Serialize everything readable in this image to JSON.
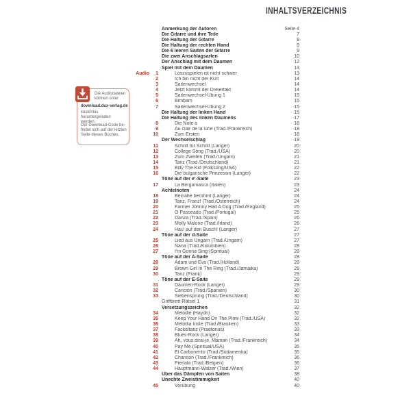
{
  "page": {
    "title": "INHALTSVERZEICHNIS"
  },
  "colors": {
    "accent": "#b73a2b",
    "icon_fill": "#c04a38",
    "box_border": "#d6907f",
    "heading_text": "#2d2d2d",
    "body_text": "#4c4c4c"
  },
  "download_box": {
    "icon": "download-icon",
    "intro_lines": "Die Audiodateien können unter",
    "url": "download.dux-verlag.de",
    "after_url": "kostenlos heruntergeladen werden.",
    "code_note": "Der Download-Code be- findet sich auf der letzten Seite dieses Buches."
  },
  "toc": {
    "rows": [
      {
        "t": "h",
        "label": "Anmerkung der Autoren",
        "page": "Seite 4"
      },
      {
        "t": "h",
        "label": "Die Gitarre und ihre Teile",
        "page": "7"
      },
      {
        "t": "h",
        "label": "Die Haltung der Gitarre",
        "page": "8"
      },
      {
        "t": "h",
        "label": "Die Haltung der rechten Hand",
        "page": "9"
      },
      {
        "t": "h",
        "label": "Die 6 leeren Saiten der Gitarre",
        "page": "9"
      },
      {
        "t": "h",
        "label": "Die zwei Anschlagsarten",
        "page": "10"
      },
      {
        "t": "h",
        "label": "Der Anschlag mit dem Daumen",
        "page": "12"
      },
      {
        "t": "h",
        "label": "Spiel mit dem Daumen",
        "page": "13"
      },
      {
        "t": "i",
        "a": "Audio",
        "n": "1",
        "label": "Loszuspielen ist nicht schwer",
        "page": "13"
      },
      {
        "t": "i",
        "n": "2",
        "label": "Ich bin nicht der Kurt",
        "page": "14"
      },
      {
        "t": "i",
        "n": "3",
        "label": "Saitenwechsel",
        "page": "14"
      },
      {
        "t": "i",
        "n": "4",
        "label": "Jetzt kommt der Dreiertakt",
        "page": "14"
      },
      {
        "t": "i",
        "n": "5",
        "label": "Saitenwechsel-Übung 1",
        "page": "15"
      },
      {
        "t": "i",
        "n": "6",
        "label": "Bimbam",
        "page": "15"
      },
      {
        "t": "i",
        "n": "7",
        "label": "Saitenwechsel-Übung 2",
        "page": "15"
      },
      {
        "t": "h",
        "label": "Die Haltung der linken Hand",
        "page": "15"
      },
      {
        "t": "h",
        "label": "Die Haltung des linken Daumens",
        "page": "17"
      },
      {
        "t": "i",
        "n": "8",
        "label": "Die Note a",
        "page": "18"
      },
      {
        "t": "i",
        "n": "9",
        "label": "Au clair de la lune (Trad./Frankreich)",
        "page": "18"
      },
      {
        "t": "i",
        "n": "10",
        "label": "Zum Ersten",
        "page": "18"
      },
      {
        "t": "h",
        "label": "Der Wechselschlag",
        "page": "19"
      },
      {
        "t": "i",
        "n": "11",
        "label": "Schritt für Schritt (Langer)",
        "page": "20"
      },
      {
        "t": "i",
        "n": "12",
        "label": "College Song (Trad./USA)",
        "page": "20"
      },
      {
        "t": "i",
        "n": "13",
        "label": "Zum Zweiten (Trad./Ungarn)",
        "page": "21"
      },
      {
        "t": "i",
        "n": "14",
        "label": "Tanz (Trad./Deutschland)",
        "page": "21"
      },
      {
        "t": "i",
        "n": "15",
        "label": "Billy The Kid (Folksong/USA)",
        "page": "22"
      },
      {
        "t": "i",
        "n": "16",
        "label": "Die bulgarische Prinzessin (Langer)",
        "page": "22"
      },
      {
        "t": "h",
        "label": "Töne auf der e'-Saite",
        "page": "23"
      },
      {
        "t": "i",
        "n": "17",
        "label": "La Bergamasca (Italien)",
        "page": "23"
      },
      {
        "t": "h",
        "label": "Achtelnoten",
        "page": "24"
      },
      {
        "t": "i",
        "n": "18",
        "label": "Beinahe berühmt (Langer)",
        "page": "24"
      },
      {
        "t": "i",
        "n": "19",
        "label": "Tanz, Franz! (Trad./Österreich)",
        "page": "24"
      },
      {
        "t": "i",
        "n": "20",
        "label": "Farmer Johnny Had A Dog (Trad./England)",
        "page": "25"
      },
      {
        "t": "i",
        "n": "21",
        "label": "O Passeado (Trad./Portugal)",
        "page": "25"
      },
      {
        "t": "i",
        "n": "22",
        "label": "Danza (Trad./Spain)",
        "page": "26"
      },
      {
        "t": "i",
        "n": "23",
        "label": "Molly Malone (Trad./Irland)",
        "page": "26"
      },
      {
        "t": "i",
        "n": "24",
        "label": "Hau' auf den Busch! (Langer)",
        "page": "27"
      },
      {
        "t": "h",
        "label": "Töne auf der d-Saite",
        "page": "27"
      },
      {
        "t": "i",
        "n": "25",
        "label": "Lied aus Ungarn (Trad./Ungarn)",
        "page": "27"
      },
      {
        "t": "i",
        "n": "26",
        "label": "Nana (Trad./Kolumbien)",
        "page": "28"
      },
      {
        "t": "i",
        "n": "27",
        "label": "I'm Gonna Sing (Spiritual)",
        "page": "28"
      },
      {
        "t": "h",
        "label": "Töne auf der A-Saite",
        "page": "28"
      },
      {
        "t": "i",
        "n": "28",
        "label": "Adam und Eva (Trad./Holland)",
        "page": "28"
      },
      {
        "t": "i",
        "n": "29",
        "label": "Brown Girl In The Ring (Trad./Jamaika)",
        "page": "29"
      },
      {
        "t": "i",
        "n": "30",
        "label": "Tanz (Frank)",
        "page": "29"
      },
      {
        "t": "h",
        "label": "Töne auf der E-Saite",
        "page": "29"
      },
      {
        "t": "i",
        "n": "31",
        "label": "Daumen-Rock (Langer)",
        "page": "29"
      },
      {
        "t": "i",
        "n": "32",
        "label": "Canción (Trad./Spanien)",
        "page": "30"
      },
      {
        "t": "i",
        "n": "33",
        "label": "Siebensprung (Trad./Deutschland)",
        "page": "30"
      },
      {
        "t": "p",
        "label": "Griffbrett-Rätsel 1",
        "page": "31"
      },
      {
        "t": "h",
        "label": "Versetzungszeichen",
        "page": "32"
      },
      {
        "t": "i",
        "n": "34",
        "label": "Melodie (Haydn)",
        "page": "32"
      },
      {
        "t": "i",
        "n": "35",
        "label": "Keep Your Hand On The Plow (Trad./USA)",
        "page": "32"
      },
      {
        "t": "i",
        "n": "36",
        "label": "Melodia triste (Trad./Brasilien)",
        "page": "33"
      },
      {
        "t": "i",
        "n": "37",
        "label": "Fackeltanz (Praetorius)",
        "page": "33"
      },
      {
        "t": "i",
        "n": "38",
        "label": "Blues-Rock (Langer)",
        "page": "34"
      },
      {
        "t": "i",
        "n": "39",
        "label": "Ah, vous dirai-je, Maman (Trad./Frankreich)",
        "page": "34"
      },
      {
        "t": "i",
        "n": "40",
        "label": "Pay Me (Spiritual/USA)",
        "page": "35"
      },
      {
        "t": "i",
        "n": "41",
        "label": "El Carbonerito (Trad./Südamerika)",
        "page": "35"
      },
      {
        "t": "i",
        "n": "42",
        "label": "Chanson (Trad./Frankreich)",
        "page": "36"
      },
      {
        "t": "i",
        "n": "43",
        "label": "Pierlala (Trad./Belgien)",
        "page": "36"
      },
      {
        "t": "i",
        "n": "44",
        "label": "Hauptmann-Walzer (Trad./Wien)",
        "page": "37"
      },
      {
        "t": "h",
        "label": "Über das Dämpfen von Saiten",
        "page": "38"
      },
      {
        "t": "h",
        "label": "Unechte Zweistimmigkeit",
        "page": "40"
      },
      {
        "t": "i",
        "n": "45",
        "label": "Vorübung",
        "page": "40"
      }
    ]
  },
  "download_box_lines": {
    "l1": "Die Audiodateien",
    "l2": "können unter",
    "url": "download.dux-verlag.de",
    "l3": "kostenlos heruntergeladen",
    "l4": "werden.",
    "l5": "Der Download-Code be-",
    "l6": "findet sich auf der letzten",
    "l7": "Seite dieses Buches."
  }
}
